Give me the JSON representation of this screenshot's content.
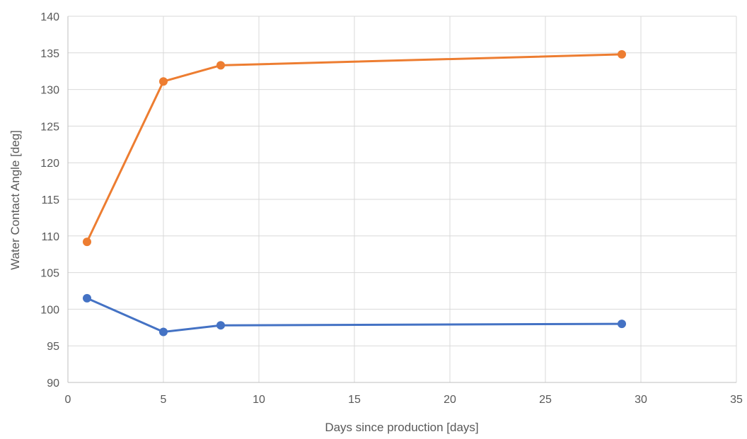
{
  "chart_data": {
    "type": "line",
    "title": "",
    "xlabel": "Days since production [days]",
    "ylabel": "Water Contact Angle [deg]",
    "xlim": [
      0,
      35
    ],
    "ylim": [
      90,
      140
    ],
    "x_ticks": [
      0,
      5,
      10,
      15,
      20,
      25,
      30,
      35
    ],
    "y_ticks": [
      90,
      95,
      100,
      105,
      110,
      115,
      120,
      125,
      130,
      135,
      140
    ],
    "grid": true,
    "legend": "none",
    "series": [
      {
        "color": "#4472C4",
        "points": [
          {
            "x": 1,
            "y": 101.5
          },
          {
            "x": 5,
            "y": 96.9
          },
          {
            "x": 8,
            "y": 97.8
          },
          {
            "x": 29,
            "y": 98.0
          }
        ]
      },
      {
        "color": "#ED7D31",
        "points": [
          {
            "x": 1,
            "y": 109.2
          },
          {
            "x": 5,
            "y": 131.1
          },
          {
            "x": 8,
            "y": 133.3
          },
          {
            "x": 29,
            "y": 134.8
          }
        ]
      }
    ]
  }
}
